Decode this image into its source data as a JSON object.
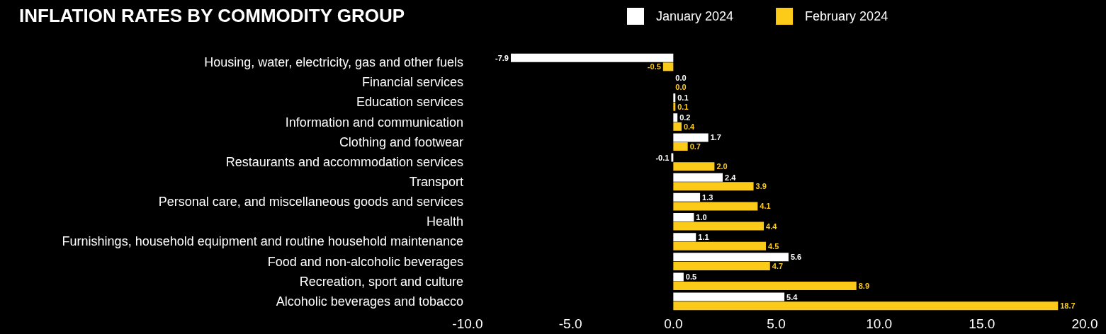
{
  "chart_data": {
    "type": "bar",
    "orientation": "horizontal",
    "title": "INFLATION RATES BY COMMODITY GROUP",
    "categories": [
      "Housing, water, electricity, gas and other fuels",
      "Financial services",
      "Education services",
      "Information and communication",
      "Clothing and footwear",
      "Restaurants and accommodation services",
      "Transport",
      "Personal care, and miscellaneous goods and services",
      "Health",
      "Furnishings, household equipment and routine household maintenance",
      "Food and non-alcoholic beverages",
      "Recreation, sport and culture",
      "Alcoholic beverages and tobacco"
    ],
    "series": [
      {
        "name": "January 2024",
        "color": "#ffffff",
        "values": [
          -7.9,
          0.0,
          0.1,
          0.2,
          1.7,
          -0.1,
          2.4,
          1.3,
          1.0,
          1.1,
          5.6,
          0.5,
          5.4
        ],
        "value_labels": [
          "-7.9",
          "0.0",
          "0.1",
          "0.2",
          "1.7",
          "-0.1",
          "2.4",
          "1.3",
          "1.0",
          "1.1",
          "5.6",
          "0.5",
          "5.4"
        ]
      },
      {
        "name": "February 2024",
        "color": "#fccb1a",
        "values": [
          -0.5,
          0.0,
          0.1,
          0.4,
          0.7,
          2.0,
          3.9,
          4.1,
          4.4,
          4.5,
          4.7,
          8.9,
          18.7
        ],
        "value_labels": [
          "-0.5",
          "0.0",
          "0.1",
          "0.4",
          "0.7",
          "2.0",
          "3.9",
          "4.1",
          "4.4",
          "4.5",
          "4.7",
          "8.9",
          "18.7"
        ]
      }
    ],
    "xlim": [
      -10,
      20
    ],
    "xticks": [
      {
        "value": -10,
        "label": "-10.0"
      },
      {
        "value": -5,
        "label": "-5.0"
      },
      {
        "value": 0,
        "label": "0.0"
      },
      {
        "value": 5,
        "label": "5.0"
      },
      {
        "value": 10,
        "label": "10.0"
      },
      {
        "value": 15,
        "label": "15.0"
      },
      {
        "value": 20,
        "label": "20.0"
      }
    ],
    "grid": false,
    "legend": "top"
  }
}
